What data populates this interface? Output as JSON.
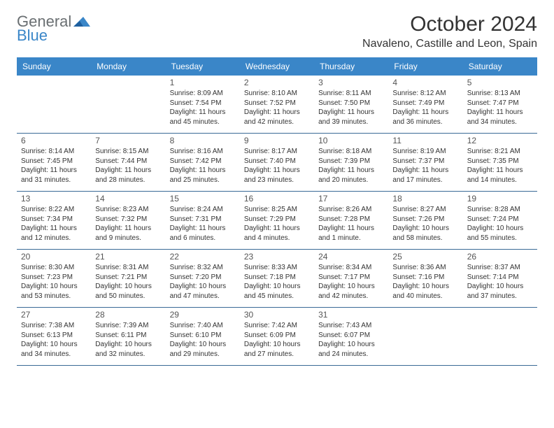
{
  "brand": {
    "part1": "General",
    "part2": "Blue"
  },
  "title": "October 2024",
  "location": "Navaleno, Castille and Leon, Spain",
  "colors": {
    "header_bg": "#3a86c8",
    "header_text": "#ffffff",
    "row_border": "#3a6a96",
    "body_text": "#333333",
    "brand_gray": "#6a6f72",
    "brand_blue": "#3a86c8",
    "background": "#ffffff"
  },
  "dow": [
    "Sunday",
    "Monday",
    "Tuesday",
    "Wednesday",
    "Thursday",
    "Friday",
    "Saturday"
  ],
  "weeks": [
    [
      null,
      null,
      {
        "n": "1",
        "sr": "8:09 AM",
        "ss": "7:54 PM",
        "dl": "11 hours and 45 minutes."
      },
      {
        "n": "2",
        "sr": "8:10 AM",
        "ss": "7:52 PM",
        "dl": "11 hours and 42 minutes."
      },
      {
        "n": "3",
        "sr": "8:11 AM",
        "ss": "7:50 PM",
        "dl": "11 hours and 39 minutes."
      },
      {
        "n": "4",
        "sr": "8:12 AM",
        "ss": "7:49 PM",
        "dl": "11 hours and 36 minutes."
      },
      {
        "n": "5",
        "sr": "8:13 AM",
        "ss": "7:47 PM",
        "dl": "11 hours and 34 minutes."
      }
    ],
    [
      {
        "n": "6",
        "sr": "8:14 AM",
        "ss": "7:45 PM",
        "dl": "11 hours and 31 minutes."
      },
      {
        "n": "7",
        "sr": "8:15 AM",
        "ss": "7:44 PM",
        "dl": "11 hours and 28 minutes."
      },
      {
        "n": "8",
        "sr": "8:16 AM",
        "ss": "7:42 PM",
        "dl": "11 hours and 25 minutes."
      },
      {
        "n": "9",
        "sr": "8:17 AM",
        "ss": "7:40 PM",
        "dl": "11 hours and 23 minutes."
      },
      {
        "n": "10",
        "sr": "8:18 AM",
        "ss": "7:39 PM",
        "dl": "11 hours and 20 minutes."
      },
      {
        "n": "11",
        "sr": "8:19 AM",
        "ss": "7:37 PM",
        "dl": "11 hours and 17 minutes."
      },
      {
        "n": "12",
        "sr": "8:21 AM",
        "ss": "7:35 PM",
        "dl": "11 hours and 14 minutes."
      }
    ],
    [
      {
        "n": "13",
        "sr": "8:22 AM",
        "ss": "7:34 PM",
        "dl": "11 hours and 12 minutes."
      },
      {
        "n": "14",
        "sr": "8:23 AM",
        "ss": "7:32 PM",
        "dl": "11 hours and 9 minutes."
      },
      {
        "n": "15",
        "sr": "8:24 AM",
        "ss": "7:31 PM",
        "dl": "11 hours and 6 minutes."
      },
      {
        "n": "16",
        "sr": "8:25 AM",
        "ss": "7:29 PM",
        "dl": "11 hours and 4 minutes."
      },
      {
        "n": "17",
        "sr": "8:26 AM",
        "ss": "7:28 PM",
        "dl": "11 hours and 1 minute."
      },
      {
        "n": "18",
        "sr": "8:27 AM",
        "ss": "7:26 PM",
        "dl": "10 hours and 58 minutes."
      },
      {
        "n": "19",
        "sr": "8:28 AM",
        "ss": "7:24 PM",
        "dl": "10 hours and 55 minutes."
      }
    ],
    [
      {
        "n": "20",
        "sr": "8:30 AM",
        "ss": "7:23 PM",
        "dl": "10 hours and 53 minutes."
      },
      {
        "n": "21",
        "sr": "8:31 AM",
        "ss": "7:21 PM",
        "dl": "10 hours and 50 minutes."
      },
      {
        "n": "22",
        "sr": "8:32 AM",
        "ss": "7:20 PM",
        "dl": "10 hours and 47 minutes."
      },
      {
        "n": "23",
        "sr": "8:33 AM",
        "ss": "7:18 PM",
        "dl": "10 hours and 45 minutes."
      },
      {
        "n": "24",
        "sr": "8:34 AM",
        "ss": "7:17 PM",
        "dl": "10 hours and 42 minutes."
      },
      {
        "n": "25",
        "sr": "8:36 AM",
        "ss": "7:16 PM",
        "dl": "10 hours and 40 minutes."
      },
      {
        "n": "26",
        "sr": "8:37 AM",
        "ss": "7:14 PM",
        "dl": "10 hours and 37 minutes."
      }
    ],
    [
      {
        "n": "27",
        "sr": "7:38 AM",
        "ss": "6:13 PM",
        "dl": "10 hours and 34 minutes."
      },
      {
        "n": "28",
        "sr": "7:39 AM",
        "ss": "6:11 PM",
        "dl": "10 hours and 32 minutes."
      },
      {
        "n": "29",
        "sr": "7:40 AM",
        "ss": "6:10 PM",
        "dl": "10 hours and 29 minutes."
      },
      {
        "n": "30",
        "sr": "7:42 AM",
        "ss": "6:09 PM",
        "dl": "10 hours and 27 minutes."
      },
      {
        "n": "31",
        "sr": "7:43 AM",
        "ss": "6:07 PM",
        "dl": "10 hours and 24 minutes."
      },
      null,
      null
    ]
  ],
  "labels": {
    "sunrise": "Sunrise: ",
    "sunset": "Sunset: ",
    "daylight": "Daylight: "
  }
}
